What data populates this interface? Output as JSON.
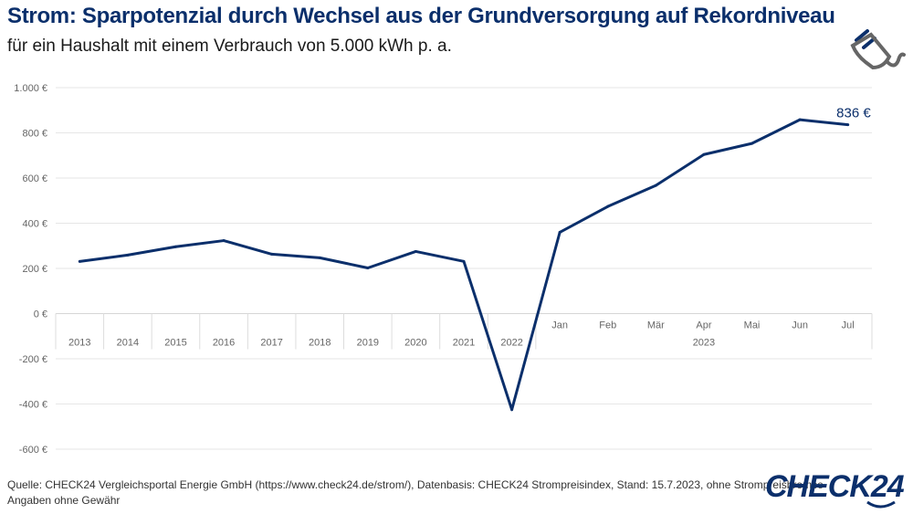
{
  "title": "Strom: Sparpotenzial durch Wechsel aus der Grundversorgung auf Rekordniveau",
  "subtitle": "für ein Haushalt mit einem Verbrauch von 5.000 kWh p. a.",
  "icon": "power-plug-icon",
  "source": "Quelle: CHECK24 Vergleichsportal Energie GmbH (https://www.check24.de/strom/), Datenbasis: CHECK24 Strompreisindex, Stand: 15.7.2023, ohne Strompreisbremse",
  "disclaimer": "Angaben ohne Gewähr",
  "logo": "CHECK24",
  "colors": {
    "line": "#0b2f6b",
    "grid": "#e3e3e3",
    "title": "#0b2f6b"
  },
  "chart_data": {
    "type": "line",
    "categories": [
      "2013",
      "2014",
      "2015",
      "2016",
      "2017",
      "2018",
      "2019",
      "2020",
      "2021",
      "2022",
      "Jan",
      "Feb",
      "Mär",
      "Apr",
      "Mai",
      "Jun",
      "Jul"
    ],
    "category_group": {
      "label": "2023",
      "from": "Jan",
      "to": "Jul"
    },
    "values": [
      231,
      259,
      296,
      323,
      263,
      247,
      202,
      275,
      231,
      -425,
      360,
      474,
      567,
      704,
      753,
      858,
      836
    ],
    "data_label": {
      "category": "Jul",
      "text": "836 €"
    },
    "ylim": [
      -600,
      1000
    ],
    "yticks": [
      -600,
      -400,
      -200,
      0,
      200,
      400,
      600,
      800,
      1000
    ],
    "ytick_labels": [
      "-600 €",
      "-400 €",
      "-200 €",
      "0 €",
      "200 €",
      "400 €",
      "600 €",
      "800 €",
      "1.000 €"
    ],
    "grid": true,
    "legend": "none"
  }
}
